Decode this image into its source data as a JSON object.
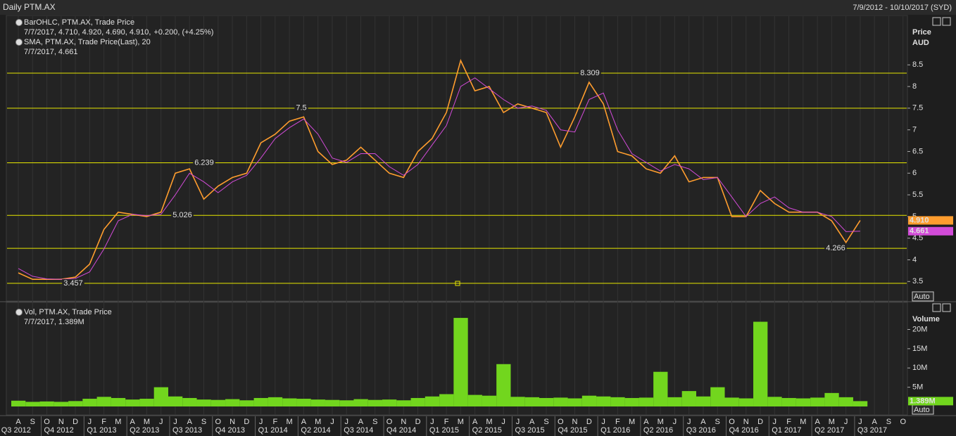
{
  "header": {
    "title": "Daily PTM.AX",
    "range": "7/9/2012 - 10/10/2017 (SYD)"
  },
  "x_axis": {
    "months": [
      "A",
      "S",
      "O",
      "N",
      "D",
      "J",
      "F",
      "M",
      "A",
      "M",
      "J",
      "J",
      "A",
      "S",
      "O",
      "N",
      "D",
      "J",
      "F",
      "M",
      "A",
      "M",
      "J",
      "J",
      "A",
      "S",
      "O",
      "N",
      "D",
      "J",
      "F",
      "M",
      "A",
      "M",
      "J",
      "J",
      "A",
      "S",
      "O",
      "N",
      "D",
      "J",
      "F",
      "M",
      "A",
      "M",
      "J",
      "J",
      "A",
      "S",
      "O",
      "N",
      "D",
      "J",
      "F",
      "M",
      "A",
      "M",
      "J",
      "J",
      "A",
      "S",
      "O"
    ],
    "quarters": [
      "Q3 2012",
      "Q4 2012",
      "Q1 2013",
      "Q2 2013",
      "Q3 2013",
      "Q4 2013",
      "Q1 2014",
      "Q2 2014",
      "Q3 2014",
      "Q4 2014",
      "Q1 2015",
      "Q2 2015",
      "Q3 2015",
      "Q4 2015",
      "Q1 2016",
      "Q2 2016",
      "Q3 2016",
      "Q4 2016",
      "Q1 2017",
      "Q2 2017",
      "Q3 2017"
    ]
  },
  "chart_data": [
    {
      "type": "line",
      "axis_title": "Price",
      "axis_unit": "AUD",
      "scale_button": "Auto",
      "ylim": [
        3.05,
        9.64
      ],
      "yticks": [
        3.5,
        4,
        4.5,
        5,
        5.5,
        6,
        6.5,
        7,
        7.5,
        8,
        8.5
      ],
      "levels": [
        8.309,
        7.5,
        6.239,
        5.026,
        4.266,
        3.457
      ],
      "level_color": "#e6e600",
      "legend": [
        {
          "title": "BarOHLC, PTM.AX, Trade Price",
          "detail": "7/7/2017, 4.710, 4.920, 4.690, 4.910,",
          "change": "+0.200, (+4.25%)"
        },
        {
          "title": "SMA, PTM.AX, Trade Price(Last),  20",
          "detail": "7/7/2017, 4.661"
        }
      ],
      "series": [
        {
          "color": "#ff9d2e",
          "last_label": "4.910",
          "values": [
            3.7,
            3.55,
            3.55,
            3.55,
            3.6,
            3.9,
            4.7,
            5.1,
            5.05,
            5.0,
            5.1,
            6.0,
            6.1,
            5.4,
            5.7,
            5.9,
            6.0,
            6.7,
            6.9,
            7.2,
            7.3,
            6.5,
            6.2,
            6.3,
            6.6,
            6.3,
            6.0,
            5.9,
            6.5,
            6.8,
            7.4,
            8.6,
            7.9,
            8.0,
            7.4,
            7.6,
            7.5,
            7.4,
            6.6,
            7.3,
            8.1,
            7.6,
            6.5,
            6.4,
            6.1,
            6.0,
            6.4,
            5.8,
            5.9,
            5.9,
            5.0,
            5.0,
            5.6,
            5.3,
            5.1,
            5.1,
            5.1,
            4.9,
            4.4,
            4.91,
            null,
            null,
            null
          ]
        },
        {
          "color": "#d24bd8",
          "last_label": "4.661",
          "values": [
            3.8,
            3.62,
            3.56,
            3.55,
            3.57,
            3.72,
            4.25,
            4.9,
            5.05,
            5.02,
            5.05,
            5.5,
            6.0,
            5.8,
            5.55,
            5.8,
            5.95,
            6.35,
            6.8,
            7.05,
            7.25,
            6.9,
            6.35,
            6.25,
            6.45,
            6.45,
            6.15,
            5.95,
            6.2,
            6.65,
            7.1,
            8.0,
            8.2,
            7.95,
            7.7,
            7.5,
            7.55,
            7.45,
            7.0,
            6.95,
            7.7,
            7.85,
            7.0,
            6.45,
            6.25,
            6.05,
            6.2,
            6.1,
            5.85,
            5.9,
            5.45,
            5.0,
            5.3,
            5.45,
            5.2,
            5.1,
            5.1,
            5.0,
            4.65,
            4.661,
            null,
            null,
            null
          ]
        }
      ]
    },
    {
      "type": "bar",
      "axis_title": "Volume",
      "scale_button": "Auto",
      "ylim": [
        0,
        26300000
      ],
      "yticks": [
        {
          "value": 5000000,
          "label": "5M"
        },
        {
          "value": 10000000,
          "label": "10M"
        },
        {
          "value": 15000000,
          "label": "15M"
        },
        {
          "value": 20000000,
          "label": "20M"
        }
      ],
      "legend": [
        {
          "title": "Vol, PTM.AX, Trade Price",
          "detail": "7/7/2017, 1.389M"
        }
      ],
      "series": [
        {
          "color": "#72d61e",
          "last_label": "1.389M",
          "values": [
            1500000,
            1200000,
            1300000,
            1200000,
            1400000,
            2000000,
            2500000,
            2200000,
            1800000,
            2000000,
            5000000,
            2600000,
            2200000,
            1800000,
            1700000,
            1900000,
            1600000,
            2200000,
            2400000,
            2100000,
            2000000,
            1800000,
            1700000,
            1600000,
            1900000,
            1700000,
            1800000,
            1600000,
            2200000,
            2600000,
            3200000,
            23000000,
            3000000,
            2800000,
            11000000,
            2500000,
            2400000,
            2200000,
            2300000,
            2100000,
            2800000,
            2600000,
            2400000,
            2200000,
            2300000,
            9000000,
            2400000,
            4000000,
            2600000,
            5000000,
            2300000,
            2100000,
            22000000,
            2500000,
            2200000,
            2100000,
            2300000,
            3500000,
            2400000,
            1389000,
            null,
            null,
            null
          ]
        }
      ]
    }
  ]
}
